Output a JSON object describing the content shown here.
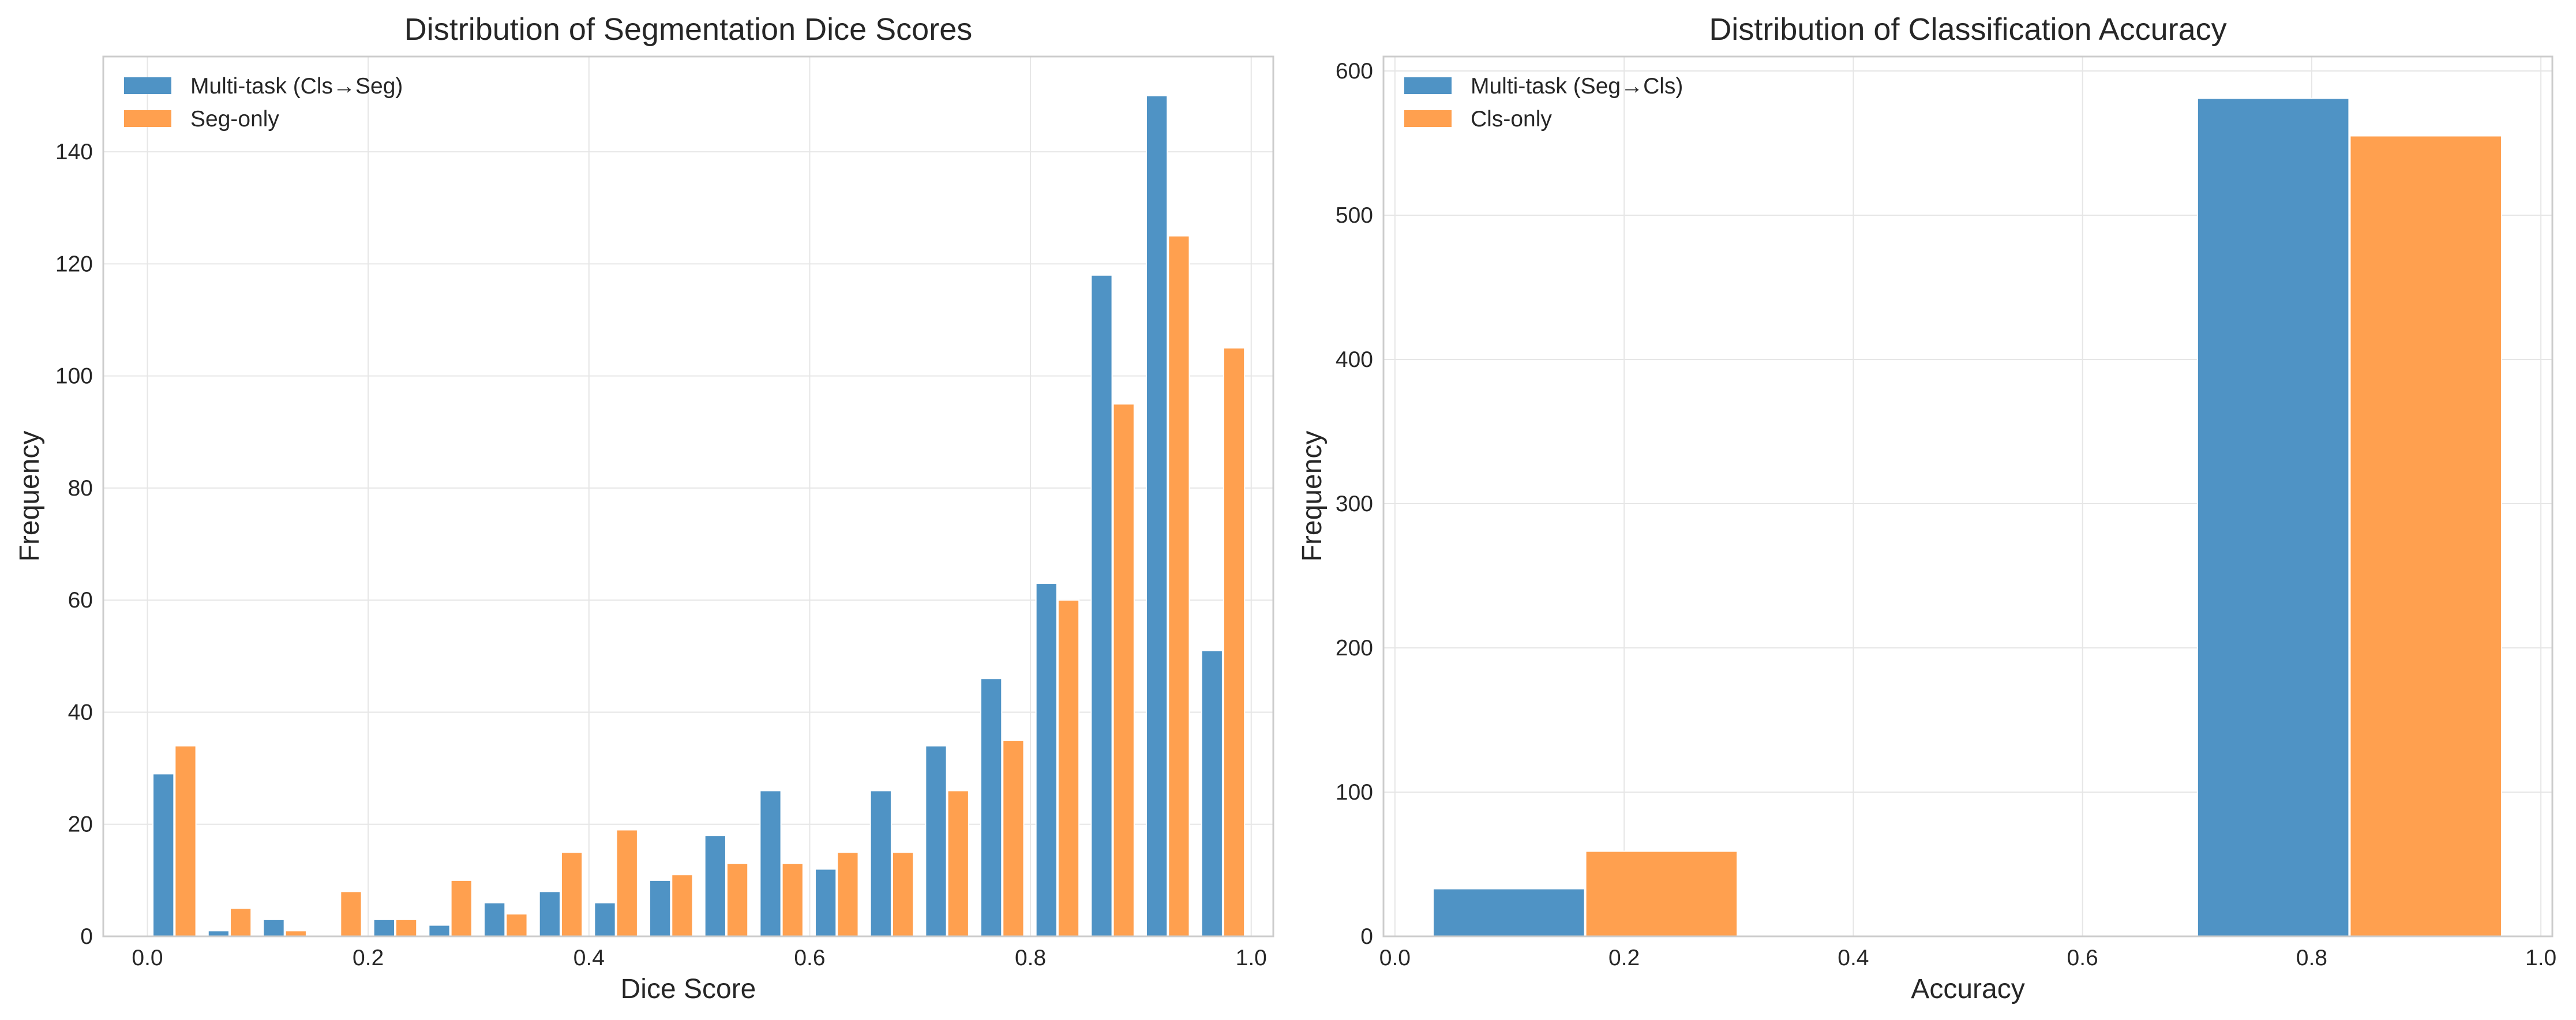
{
  "chart_data": [
    {
      "type": "bar",
      "title": "Distribution of Segmentation Dice Scores",
      "xlabel": "Dice Score",
      "ylabel": "Frequency",
      "xlim": [
        -0.04,
        1.02
      ],
      "ylim": [
        0,
        157
      ],
      "xticks": [
        0.0,
        0.2,
        0.4,
        0.6,
        0.8,
        1.0
      ],
      "xtick_labels": [
        "0.0",
        "0.2",
        "0.4",
        "0.6",
        "0.8",
        "1.0"
      ],
      "yticks": [
        0,
        20,
        40,
        60,
        80,
        100,
        120,
        140
      ],
      "ytick_labels": [
        "0",
        "20",
        "40",
        "60",
        "80",
        "100",
        "120",
        "140"
      ],
      "grid": true,
      "legend_position": "top-left",
      "bin_edges": [
        0.0,
        0.05,
        0.1,
        0.15,
        0.2,
        0.25,
        0.3,
        0.35,
        0.4,
        0.45,
        0.5,
        0.55,
        0.6,
        0.65,
        0.7,
        0.75,
        0.8,
        0.85,
        0.9,
        0.95,
        1.0
      ],
      "series": [
        {
          "name": "Multi-task (Cls→Seg)",
          "color": "#4f93c5",
          "values": [
            29,
            1,
            3,
            0,
            3,
            2,
            6,
            8,
            6,
            10,
            18,
            26,
            12,
            26,
            34,
            46,
            63,
            118,
            150,
            51
          ]
        },
        {
          "name": "Seg-only",
          "color": "#ffa04f",
          "values": [
            34,
            5,
            1,
            8,
            3,
            10,
            4,
            15,
            19,
            11,
            13,
            13,
            15,
            15,
            26,
            35,
            60,
            95,
            125,
            105
          ]
        }
      ]
    },
    {
      "type": "bar",
      "title": "Distribution of Classification Accuracy",
      "xlabel": "Accuracy",
      "ylabel": "Frequency",
      "xlim": [
        -0.01,
        1.01
      ],
      "ylim": [
        0,
        610
      ],
      "xticks": [
        0.0,
        0.2,
        0.4,
        0.6,
        0.8,
        1.0
      ],
      "xtick_labels": [
        "0.0",
        "0.2",
        "0.4",
        "0.6",
        "0.8",
        "1.0"
      ],
      "yticks": [
        0,
        100,
        200,
        300,
        400,
        500,
        600
      ],
      "ytick_labels": [
        "0",
        "100",
        "200",
        "300",
        "400",
        "500",
        "600"
      ],
      "grid": true,
      "legend_position": "top-left",
      "bin_edges": [
        0.0,
        0.333,
        0.667,
        1.0
      ],
      "series": [
        {
          "name": "Multi-task (Seg→Cls)",
          "color": "#4f93c5",
          "values": [
            33,
            0,
            581
          ]
        },
        {
          "name": "Cls-only",
          "color": "#ffa04f",
          "values": [
            59,
            0,
            555
          ]
        }
      ]
    }
  ]
}
